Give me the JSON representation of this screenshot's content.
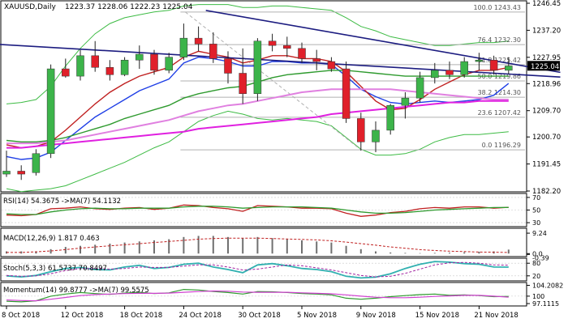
{
  "colors": {
    "bg": "#ffffff",
    "bull": "#3cb44a",
    "bear": "#e0202a",
    "wick": "#222222",
    "trendline": "#1c1c80",
    "fib": "#b0b0b0",
    "bb": "#3dbb44",
    "sma_fast": "#1f3fe6",
    "sma_red": "#c02020",
    "sma_green": "#2e9a2e",
    "sma_pink": "#e080e0",
    "sma_magenta": "#e020e0",
    "osc_red": "#c02020",
    "osc_green": "#2e9a2e",
    "stoch_k": "#30b0b0",
    "stoch_d": "#a020a0",
    "macd_hist": "#707070",
    "macd_signal": "#c02020",
    "mom_green": "#2e9a2e",
    "mom_magenta": "#d040d0"
  },
  "chart_data": [
    {
      "type": "candlestick",
      "title": "XAUUSD,Daily",
      "ohlc_text": "1223.37 1228.06 1222.23 1225.04",
      "current_price": 1225.04,
      "ylim": [
        1182.2,
        1246.45
      ],
      "y_ticks": [
        1246.45,
        1237.2,
        1227.95,
        1218.96,
        1209.7,
        1200.7,
        1191.45,
        1182.2
      ],
      "x_ticks": [
        "8 Oct 2018",
        "12 Oct 2018",
        "18 Oct 2018",
        "24 Oct 2018",
        "30 Oct 2018",
        "5 Nov 2018",
        "9 Nov 2018",
        "15 Nov 2018",
        "21 Nov 2018"
      ],
      "x_tick_index": [
        0,
        4,
        8,
        12,
        16,
        20,
        24,
        28,
        32
      ],
      "candles": [
        {
          "o": 1188.0,
          "h": 1196.0,
          "l": 1187.0,
          "c": 1189.0
        },
        {
          "o": 1189.0,
          "h": 1191.0,
          "l": 1186.0,
          "c": 1188.0
        },
        {
          "o": 1188.5,
          "h": 1196.5,
          "l": 1187.5,
          "c": 1195.0
        },
        {
          "o": 1195.0,
          "h": 1225.5,
          "l": 1193.5,
          "c": 1224.0
        },
        {
          "o": 1224.0,
          "h": 1227.5,
          "l": 1221.0,
          "c": 1221.5
        },
        {
          "o": 1221.5,
          "h": 1230.5,
          "l": 1220.0,
          "c": 1228.5
        },
        {
          "o": 1228.5,
          "h": 1233.5,
          "l": 1223.0,
          "c": 1224.5
        },
        {
          "o": 1224.5,
          "h": 1227.0,
          "l": 1220.0,
          "c": 1222.0
        },
        {
          "o": 1222.0,
          "h": 1228.0,
          "l": 1221.5,
          "c": 1227.0
        },
        {
          "o": 1227.0,
          "h": 1232.0,
          "l": 1224.0,
          "c": 1229.0
        },
        {
          "o": 1229.0,
          "h": 1230.5,
          "l": 1222.0,
          "c": 1223.5
        },
        {
          "o": 1223.5,
          "h": 1229.5,
          "l": 1222.5,
          "c": 1228.0
        },
        {
          "o": 1228.0,
          "h": 1239.5,
          "l": 1227.0,
          "c": 1234.5
        },
        {
          "o": 1234.5,
          "h": 1238.5,
          "l": 1230.0,
          "c": 1232.5
        },
        {
          "o": 1232.5,
          "h": 1236.5,
          "l": 1226.0,
          "c": 1227.5
        },
        {
          "o": 1227.5,
          "h": 1230.0,
          "l": 1219.0,
          "c": 1222.5
        },
        {
          "o": 1222.5,
          "h": 1231.0,
          "l": 1212.0,
          "c": 1215.5
        },
        {
          "o": 1215.5,
          "h": 1234.5,
          "l": 1213.0,
          "c": 1233.5
        },
        {
          "o": 1233.5,
          "h": 1236.0,
          "l": 1230.0,
          "c": 1232.0
        },
        {
          "o": 1232.0,
          "h": 1235.0,
          "l": 1228.0,
          "c": 1231.0
        },
        {
          "o": 1231.0,
          "h": 1233.0,
          "l": 1226.0,
          "c": 1227.5
        },
        {
          "o": 1227.5,
          "h": 1230.5,
          "l": 1223.5,
          "c": 1226.5
        },
        {
          "o": 1226.5,
          "h": 1228.0,
          "l": 1223.0,
          "c": 1224.0
        },
        {
          "o": 1224.0,
          "h": 1226.5,
          "l": 1205.5,
          "c": 1207.0
        },
        {
          "o": 1207.0,
          "h": 1209.0,
          "l": 1196.0,
          "c": 1199.0
        },
        {
          "o": 1199.0,
          "h": 1206.0,
          "l": 1195.5,
          "c": 1203.0
        },
        {
          "o": 1203.0,
          "h": 1212.0,
          "l": 1201.5,
          "c": 1211.5
        },
        {
          "o": 1211.5,
          "h": 1216.0,
          "l": 1207.0,
          "c": 1214.0
        },
        {
          "o": 1214.0,
          "h": 1223.0,
          "l": 1212.5,
          "c": 1221.0
        },
        {
          "o": 1221.0,
          "h": 1226.0,
          "l": 1219.0,
          "c": 1223.5
        },
        {
          "o": 1223.5,
          "h": 1226.5,
          "l": 1220.5,
          "c": 1222.0
        },
        {
          "o": 1222.0,
          "h": 1228.0,
          "l": 1221.0,
          "c": 1226.5
        },
        {
          "o": 1226.5,
          "h": 1229.5,
          "l": 1223.5,
          "c": 1227.0
        },
        {
          "o": 1227.0,
          "h": 1228.5,
          "l": 1222.0,
          "c": 1223.5
        },
        {
          "o": 1223.5,
          "h": 1228.0,
          "l": 1222.2,
          "c": 1225.0
        }
      ],
      "fibonacci": [
        {
          "label": "100.0 1243.43",
          "value": 1243.43
        },
        {
          "label": "76.4 1232.30",
          "value": 1232.3
        },
        {
          "label": "61.8 1225.42",
          "value": 1225.42
        },
        {
          "label": "50.0 1219.86",
          "value": 1219.86
        },
        {
          "label": "38.2 1214.30",
          "value": 1214.3
        },
        {
          "label": "23.6 1207.42",
          "value": 1207.42
        },
        {
          "label": "0.0 1196.29",
          "value": 1196.29
        }
      ],
      "trendlines": [
        {
          "x": [
            -1,
            37.5
          ],
          "y": [
            1232.5,
            1221.2
          ]
        },
        {
          "x": [
            13.5,
            37.5
          ],
          "y": [
            1244.0,
            1222.8
          ]
        }
      ],
      "moving_averages": [
        {
          "key": "sma_fast",
          "values": [
            1194.0,
            1193.0,
            1193.5,
            1195.5,
            1199.5,
            1203.5,
            1207.5,
            1210.5,
            1213.5,
            1216.5,
            1218.5,
            1220.5,
            1226.0,
            1228.0,
            1227.5,
            1226.5,
            1225.0,
            1225.0,
            1226.5,
            1226.5,
            1226.0,
            1226.0,
            1225.5,
            1221.5,
            1217.0,
            1214.5,
            1212.5,
            1212.0,
            1212.5,
            1213.0,
            1212.5,
            1213.0,
            1213.5,
            1215.0,
            1219.0
          ]
        },
        {
          "key": "sma_red",
          "values": [
            1198.0,
            1197.0,
            1197.5,
            1199.0,
            1203.0,
            1207.5,
            1212.0,
            1216.0,
            1219.0,
            1221.5,
            1223.0,
            1224.5,
            1228.0,
            1230.0,
            1229.0,
            1228.0,
            1226.0,
            1227.0,
            1228.5,
            1228.5,
            1227.5,
            1227.5,
            1226.5,
            1223.0,
            1218.0,
            1213.0,
            1210.0,
            1210.5,
            1213.5,
            1217.0,
            1219.5,
            1222.0,
            1223.5,
            1223.5,
            1224.5
          ]
        },
        {
          "key": "sma_green",
          "values": [
            1199.5,
            1199.0,
            1199.0,
            1199.5,
            1200.5,
            1202.0,
            1203.5,
            1205.0,
            1207.0,
            1208.5,
            1210.0,
            1211.5,
            1214.0,
            1215.5,
            1216.5,
            1217.5,
            1218.0,
            1219.5,
            1221.0,
            1222.0,
            1222.5,
            1223.0,
            1223.5,
            1223.5,
            1223.0,
            1222.5,
            1222.0,
            1221.5,
            1221.5,
            1221.5,
            1221.5,
            1221.5,
            1221.5,
            1221.5,
            1221.5
          ]
        },
        {
          "key": "sma_pink",
          "values": [
            1198.5,
            1198.5,
            1198.5,
            1199.0,
            1199.5,
            1200.5,
            1201.5,
            1202.5,
            1203.5,
            1204.5,
            1205.5,
            1206.5,
            1208.0,
            1209.5,
            1210.5,
            1211.5,
            1212.0,
            1213.0,
            1214.0,
            1215.0,
            1216.0,
            1216.5,
            1217.0,
            1217.0,
            1217.0,
            1217.0,
            1217.0,
            1216.5,
            1216.0,
            1215.5,
            1215.0,
            1214.5,
            1214.0,
            1213.5,
            1213.5
          ]
        },
        {
          "key": "sma_magenta",
          "values": [
            1197.0,
            1197.0,
            1197.5,
            1198.0,
            1198.5,
            1199.0,
            1199.5,
            1200.0,
            1200.5,
            1201.0,
            1201.5,
            1202.0,
            1202.5,
            1203.5,
            1204.0,
            1204.5,
            1205.0,
            1205.5,
            1206.0,
            1206.5,
            1207.0,
            1207.5,
            1208.5,
            1209.0,
            1209.5,
            1210.0,
            1210.5,
            1211.0,
            1211.5,
            1212.0,
            1212.5,
            1212.5,
            1213.0,
            1213.0,
            1213.0
          ]
        }
      ],
      "bollinger_upper": [
        1212.0,
        1212.5,
        1213.5,
        1218.0,
        1225.0,
        1231.0,
        1236.0,
        1239.5,
        1241.5,
        1242.5,
        1243.5,
        1244.0,
        1245.5,
        1246.0,
        1246.0,
        1246.0,
        1245.0,
        1245.0,
        1245.5,
        1245.5,
        1245.0,
        1244.5,
        1244.0,
        1241.5,
        1238.5,
        1237.0,
        1235.0,
        1234.0,
        1233.0,
        1232.0,
        1232.0,
        1232.5,
        1233.0,
        1233.0,
        1233.5
      ],
      "bollinger_lower": [
        1183.0,
        1182.0,
        1182.5,
        1183.0,
        1184.0,
        1186.0,
        1188.0,
        1190.0,
        1192.0,
        1194.5,
        1197.0,
        1199.0,
        1202.5,
        1206.0,
        1208.0,
        1209.5,
        1208.5,
        1207.0,
        1206.5,
        1207.0,
        1206.5,
        1206.0,
        1204.5,
        1200.5,
        1196.5,
        1194.5,
        1194.5,
        1195.0,
        1196.5,
        1199.0,
        1200.5,
        1201.5,
        1201.5,
        1202.0,
        1202.5
      ]
    },
    {
      "type": "line",
      "title": "RSI(14) 54.3675 ->MA(7) 54.1132",
      "ylim": [
        25,
        75
      ],
      "y_ticks": [
        70,
        50,
        30
      ],
      "series": [
        {
          "key": "osc_red",
          "values": [
            42,
            41,
            43,
            52,
            53,
            55,
            52,
            51,
            53,
            54,
            51,
            53,
            58,
            57,
            54,
            52,
            48,
            57,
            56,
            55,
            53,
            53,
            52,
            45,
            40,
            42,
            46,
            48,
            52,
            54,
            53,
            55,
            55,
            53,
            54.4
          ]
        },
        {
          "key": "osc_green",
          "values": [
            44,
            43,
            43,
            47,
            50,
            52,
            53,
            52,
            52,
            53,
            53,
            53,
            55,
            56,
            56,
            55,
            53,
            54,
            55,
            55,
            55,
            54,
            53,
            50,
            47,
            45,
            45,
            46,
            48,
            50,
            51,
            52,
            53,
            54,
            54.1
          ]
        }
      ]
    },
    {
      "type": "bar",
      "title": "MACD(12,26,9) 1.817 0.463",
      "ylim": [
        -1,
        10
      ],
      "y_tick_labels": [
        "9.24",
        "0.0",
        "-0.39"
      ],
      "y_tick_values": [
        9.24,
        0.0,
        -0.39
      ],
      "histogram": [
        1.0,
        1.0,
        1.0,
        2.0,
        3.0,
        3.5,
        4.0,
        4.5,
        5.0,
        5.5,
        6.0,
        6.5,
        7.5,
        8.0,
        8.0,
        7.5,
        7.0,
        7.5,
        7.0,
        6.5,
        6.0,
        5.5,
        5.0,
        3.5,
        2.0,
        1.0,
        0.5,
        0.3,
        0.2,
        0.3,
        0.4,
        0.6,
        0.8,
        1.0,
        1.8
      ],
      "signal": [
        0.5,
        0.5,
        0.8,
        1.2,
        1.8,
        2.5,
        3.0,
        3.5,
        4.0,
        4.5,
        5.0,
        5.5,
        6.0,
        6.5,
        6.8,
        7.0,
        7.0,
        7.0,
        6.8,
        6.6,
        6.4,
        6.2,
        5.8,
        5.2,
        4.5,
        3.8,
        3.0,
        2.4,
        1.8,
        1.4,
        1.1,
        0.9,
        0.7,
        0.6,
        0.5
      ]
    },
    {
      "type": "line",
      "title": "Stoch(5,3,3) 61.5737 70.8497",
      "ylim": [
        0,
        100
      ],
      "y_tick_labels": [
        "80",
        "20"
      ],
      "y_tick_values": [
        80,
        20
      ],
      "series": [
        {
          "key": "stoch_k",
          "values": [
            20,
            15,
            22,
            40,
            55,
            60,
            50,
            48,
            62,
            70,
            55,
            60,
            75,
            80,
            62,
            50,
            35,
            72,
            78,
            68,
            55,
            50,
            40,
            18,
            10,
            14,
            30,
            55,
            75,
            88,
            85,
            78,
            75,
            62,
            61.6
          ]
        },
        {
          "key": "stoch_d",
          "values": [
            22,
            18,
            20,
            30,
            45,
            55,
            55,
            52,
            55,
            62,
            60,
            60,
            66,
            72,
            72,
            62,
            48,
            52,
            62,
            72,
            68,
            58,
            48,
            35,
            22,
            15,
            18,
            32,
            52,
            72,
            82,
            84,
            80,
            72,
            70.8
          ]
        }
      ]
    },
    {
      "type": "line",
      "title": "Momentum(14) 99.8777 ->MA(7) 99.5575",
      "ylim": [
        96.5,
        105
      ],
      "y_tick_labels": [
        "104.2082",
        "100",
        "97.1115"
      ],
      "y_tick_values": [
        104.2082,
        100,
        97.1115
      ],
      "series": [
        {
          "key": "mom_green",
          "values": [
            98.0,
            97.8,
            98.2,
            100.0,
            100.8,
            101.4,
            101.0,
            100.7,
            101.2,
            101.5,
            101.0,
            101.3,
            102.6,
            102.4,
            101.8,
            101.4,
            100.8,
            101.8,
            101.7,
            101.4,
            101.0,
            100.8,
            100.5,
            99.2,
            98.8,
            99.2,
            99.8,
            100.2,
            100.6,
            100.8,
            100.3,
            100.5,
            100.2,
            99.8,
            99.9
          ]
        },
        {
          "key": "mom_magenta",
          "values": [
            98.5,
            98.3,
            98.2,
            98.8,
            99.5,
            100.2,
            100.6,
            100.8,
            101.0,
            101.1,
            101.1,
            101.2,
            101.5,
            101.8,
            102.0,
            101.9,
            101.6,
            101.5,
            101.5,
            101.5,
            101.3,
            101.1,
            100.9,
            100.5,
            100.0,
            99.6,
            99.4,
            99.4,
            99.6,
            99.9,
            100.1,
            100.3,
            100.3,
            100.0,
            99.6
          ]
        }
      ]
    }
  ]
}
